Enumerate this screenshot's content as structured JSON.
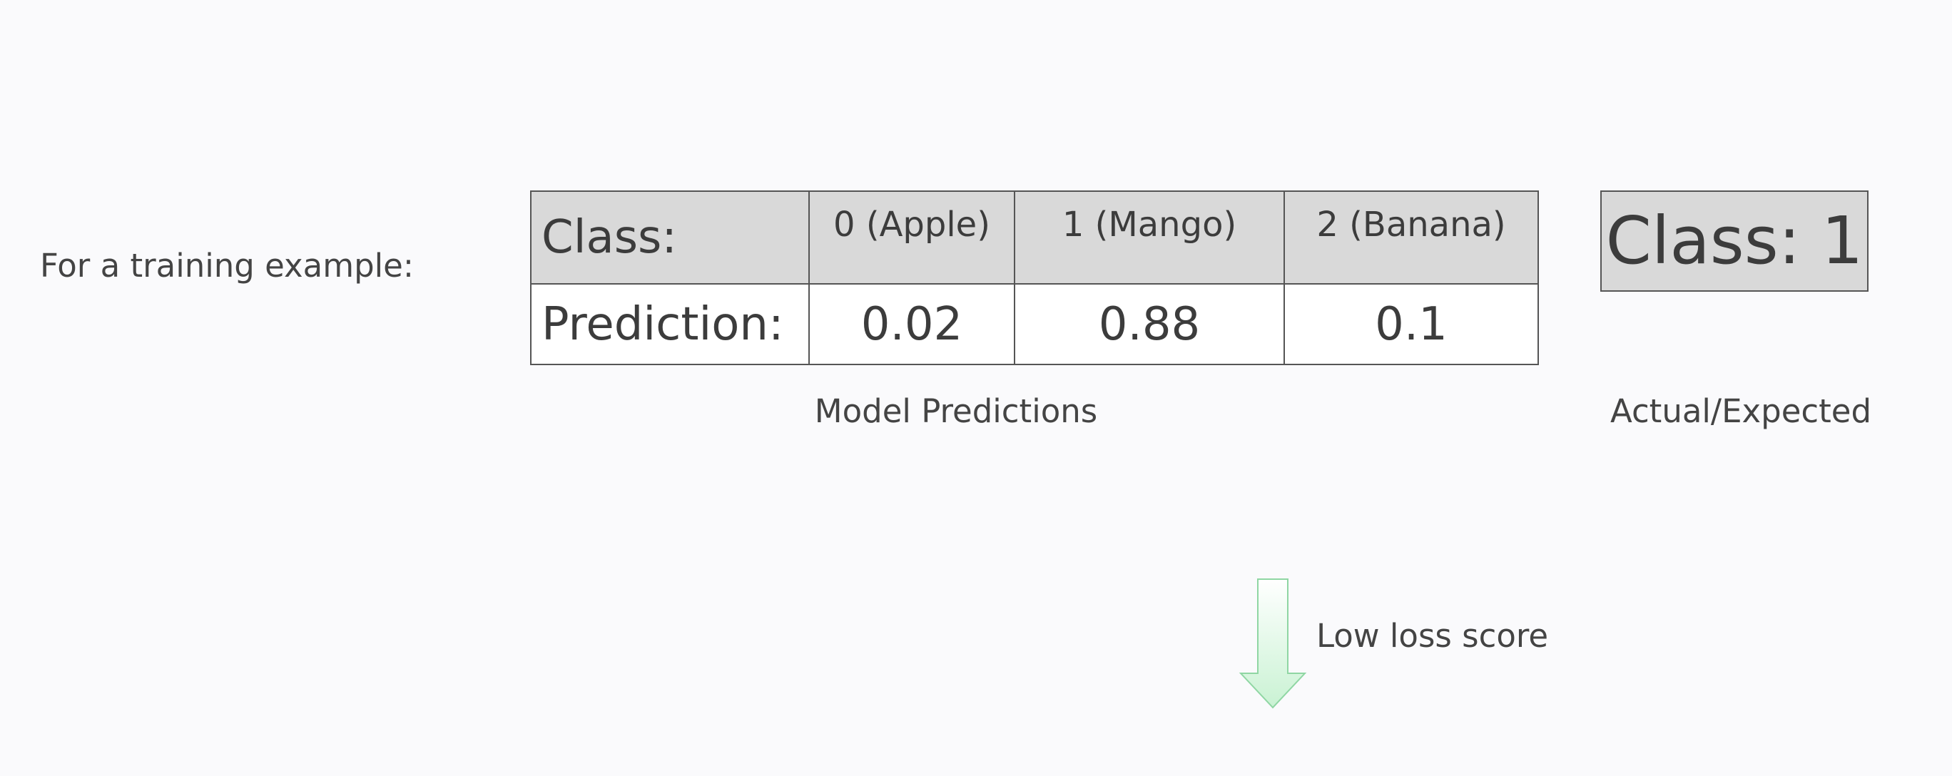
{
  "intro_text": "For a training example:",
  "table": {
    "header_label": "Class:",
    "row_label": "Prediction:",
    "classes": [
      "0 (Apple)",
      "1 (Mango)",
      "2 (Banana)"
    ],
    "predictions": [
      "0.02",
      "0.88",
      "0.1"
    ]
  },
  "actual": {
    "value": "Class: 1"
  },
  "captions": {
    "model": "Model Predictions",
    "actual": "Actual/Expected"
  },
  "arrow": {
    "label": "Low loss score",
    "icon": "down-arrow-icon",
    "color": "#c9f2d3"
  }
}
